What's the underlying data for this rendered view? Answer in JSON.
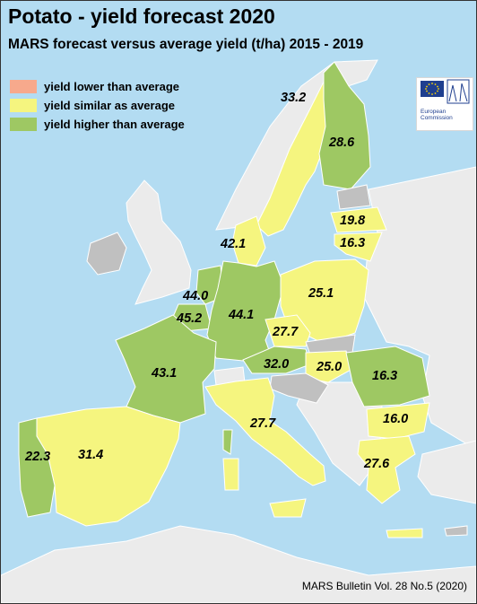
{
  "title": "Potato - yield forecast 2020",
  "subtitle": "MARS forecast versus average yield (t/ha) 2015 - 2019",
  "legend": [
    {
      "label": "yield lower than average",
      "color": "#f7a98c"
    },
    {
      "label": "yield similar as average",
      "color": "#f5f57f"
    },
    {
      "label": "yield higher than average",
      "color": "#9ec863"
    }
  ],
  "logo": {
    "line1": "European",
    "line2": "Commission"
  },
  "colors": {
    "sea": "#b3dcf2",
    "lower": "#f7a98c",
    "similar": "#f5f57f",
    "higher": "#9ec863",
    "no_data": "#c0c0c0",
    "non_eu": "#ebebeb",
    "borders": "#ffffff"
  },
  "countries": [
    {
      "name": "Sweden",
      "value": "33.2",
      "category": "similar"
    },
    {
      "name": "Finland",
      "value": "28.6",
      "category": "higher"
    },
    {
      "name": "Latvia",
      "value": "19.8",
      "category": "similar"
    },
    {
      "name": "Lithuania",
      "value": "16.3",
      "category": "similar"
    },
    {
      "name": "Denmark",
      "value": "42.1",
      "category": "similar"
    },
    {
      "name": "Netherlands",
      "value": "44.0",
      "category": "higher"
    },
    {
      "name": "Belgium",
      "value": "45.2",
      "category": "higher"
    },
    {
      "name": "Germany",
      "value": "44.1",
      "category": "higher"
    },
    {
      "name": "Poland",
      "value": "25.1",
      "category": "similar"
    },
    {
      "name": "Czechia",
      "value": "27.7",
      "category": "similar"
    },
    {
      "name": "France",
      "value": "43.1",
      "category": "higher"
    },
    {
      "name": "Austria",
      "value": "32.0",
      "category": "higher"
    },
    {
      "name": "Hungary",
      "value": "25.0",
      "category": "similar"
    },
    {
      "name": "Romania",
      "value": "16.3",
      "category": "higher"
    },
    {
      "name": "Bulgaria",
      "value": "16.0",
      "category": "similar"
    },
    {
      "name": "Italy",
      "value": "27.7",
      "category": "similar"
    },
    {
      "name": "Greece",
      "value": "27.6",
      "category": "similar"
    },
    {
      "name": "Portugal",
      "value": "22.3",
      "category": "higher"
    },
    {
      "name": "Spain",
      "value": "31.4",
      "category": "similar"
    }
  ],
  "source": "MARS Bulletin Vol. 28 No.5 (2020)"
}
